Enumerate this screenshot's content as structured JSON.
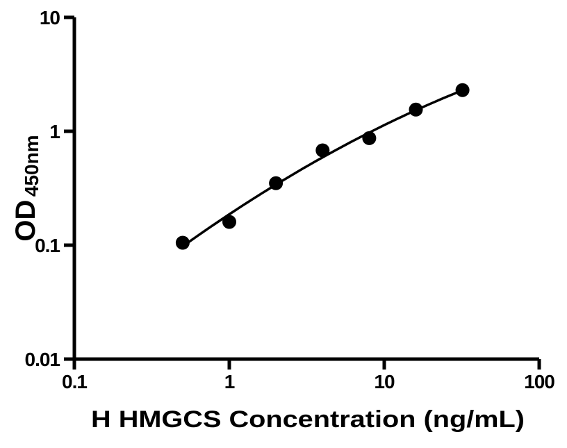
{
  "figure": {
    "background": "#ffffff",
    "foreground": "#000000"
  },
  "chart_data": {
    "type": "scatter",
    "title": "",
    "xlabel": "H HMGCS Concentration (ng/mL)",
    "ylabel_main": "OD",
    "ylabel_sub": "450nm",
    "x_scale": "log",
    "y_scale": "log",
    "xlim": [
      0.1,
      100
    ],
    "ylim": [
      0.01,
      10
    ],
    "x_ticks": [
      0.1,
      1,
      10,
      100
    ],
    "x_tick_labels": [
      "0.1",
      "1",
      "10",
      "100"
    ],
    "y_ticks": [
      0.01,
      0.1,
      1,
      10
    ],
    "y_tick_labels": [
      "0.01",
      "0.1",
      "1",
      "10"
    ],
    "grid": false,
    "legend": false,
    "series": [
      {
        "name": "standard-curve-points",
        "marker": "filled-circle",
        "marker_color": "#000000",
        "x": [
          0.5,
          1,
          2,
          4,
          8,
          16,
          32
        ],
        "y": [
          0.105,
          0.16,
          0.35,
          0.68,
          0.87,
          1.55,
          2.3
        ]
      }
    ],
    "fit_curve": {
      "description": "smooth fitted curve through points, drawn from first to last point",
      "model": "log10(y) = a + b*u + c*u^2, with u = log10(x) - u0",
      "a": -0.2292,
      "b": 0.7588,
      "c": -0.1181,
      "u0": 0.602,
      "x_range": [
        0.5,
        32
      ],
      "line_color": "#000000"
    }
  }
}
